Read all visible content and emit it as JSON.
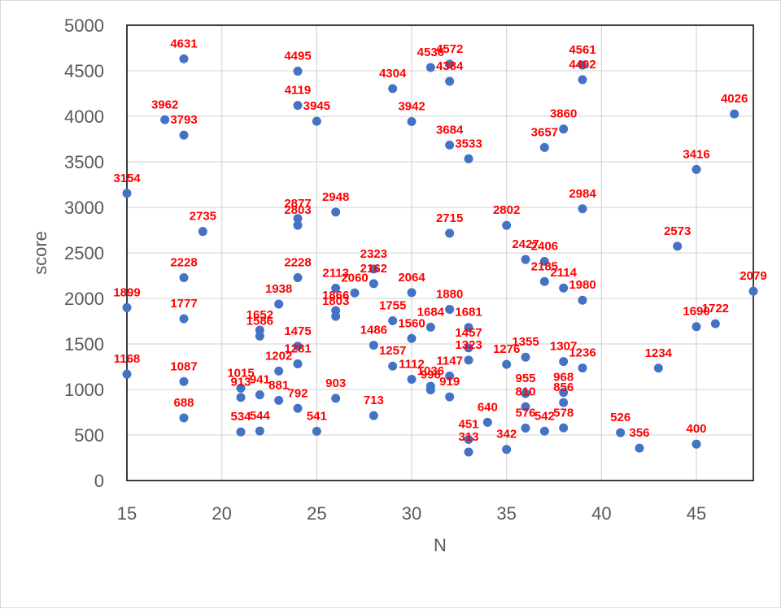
{
  "chart_data": {
    "type": "scatter",
    "title": "",
    "xlabel": "N",
    "ylabel": "score",
    "xlim": [
      15,
      48
    ],
    "ylim": [
      0,
      5000
    ],
    "xticks": [
      15,
      20,
      25,
      30,
      35,
      40,
      45
    ],
    "yticks": [
      0,
      500,
      1000,
      1500,
      2000,
      2500,
      3000,
      3500,
      4000,
      4500,
      5000
    ],
    "grid": true,
    "legend": "none",
    "marker_color": "#4472c4",
    "label_color": "#ff0000",
    "points": [
      {
        "x": 15,
        "y": 3154,
        "label": "3154"
      },
      {
        "x": 15,
        "y": 1899,
        "label": "1899"
      },
      {
        "x": 15,
        "y": 1168,
        "label": "1168"
      },
      {
        "x": 17,
        "y": 3962,
        "label": "3962"
      },
      {
        "x": 18,
        "y": 4631,
        "label": "4631"
      },
      {
        "x": 18,
        "y": 3793,
        "label": "3793"
      },
      {
        "x": 18,
        "y": 2228,
        "label": "2228"
      },
      {
        "x": 18,
        "y": 1777,
        "label": "1777"
      },
      {
        "x": 18,
        "y": 1087,
        "label": "1087"
      },
      {
        "x": 18,
        "y": 688,
        "label": "688"
      },
      {
        "x": 19,
        "y": 2735,
        "label": "2735"
      },
      {
        "x": 21,
        "y": 1015,
        "label": "1015"
      },
      {
        "x": 21,
        "y": 913,
        "label": "913"
      },
      {
        "x": 21,
        "y": 534,
        "label": "534"
      },
      {
        "x": 22,
        "y": 1652,
        "label": "1652"
      },
      {
        "x": 22,
        "y": 1586,
        "label": "1586"
      },
      {
        "x": 22,
        "y": 941,
        "label": "941"
      },
      {
        "x": 22,
        "y": 544,
        "label": "544"
      },
      {
        "x": 23,
        "y": 1938,
        "label": "1938"
      },
      {
        "x": 23,
        "y": 1202,
        "label": "1202"
      },
      {
        "x": 23,
        "y": 881,
        "label": "881"
      },
      {
        "x": 24,
        "y": 4495,
        "label": "4495"
      },
      {
        "x": 24,
        "y": 4119,
        "label": "4119"
      },
      {
        "x": 24,
        "y": 2877,
        "label": "2877"
      },
      {
        "x": 24,
        "y": 2803,
        "label": "2803"
      },
      {
        "x": 24,
        "y": 2228,
        "label": "2228"
      },
      {
        "x": 24,
        "y": 1475,
        "label": "1475"
      },
      {
        "x": 24,
        "y": 1281,
        "label": "1281"
      },
      {
        "x": 24,
        "y": 792,
        "label": "792"
      },
      {
        "x": 25,
        "y": 3945,
        "label": "3945"
      },
      {
        "x": 25,
        "y": 541,
        "label": "541"
      },
      {
        "x": 26,
        "y": 2948,
        "label": "2948"
      },
      {
        "x": 26,
        "y": 2113,
        "label": "2113"
      },
      {
        "x": 26,
        "y": 1866,
        "label": "1866"
      },
      {
        "x": 26,
        "y": 1803,
        "label": "1803"
      },
      {
        "x": 26,
        "y": 903,
        "label": "903"
      },
      {
        "x": 27,
        "y": 2060,
        "label": "2060"
      },
      {
        "x": 28,
        "y": 2323,
        "label": "2323"
      },
      {
        "x": 28,
        "y": 2162,
        "label": "2162"
      },
      {
        "x": 28,
        "y": 1486,
        "label": "1486"
      },
      {
        "x": 28,
        "y": 713,
        "label": "713"
      },
      {
        "x": 29,
        "y": 4304,
        "label": "4304"
      },
      {
        "x": 29,
        "y": 1755,
        "label": "1755"
      },
      {
        "x": 29,
        "y": 1257,
        "label": "1257"
      },
      {
        "x": 30,
        "y": 3942,
        "label": "3942"
      },
      {
        "x": 30,
        "y": 2064,
        "label": "2064"
      },
      {
        "x": 30,
        "y": 1560,
        "label": "1560"
      },
      {
        "x": 30,
        "y": 1112,
        "label": "1112"
      },
      {
        "x": 31,
        "y": 4536,
        "label": "4536"
      },
      {
        "x": 31,
        "y": 1684,
        "label": "1684"
      },
      {
        "x": 31,
        "y": 1036,
        "label": "1036"
      },
      {
        "x": 31,
        "y": 996,
        "label": "996"
      },
      {
        "x": 32,
        "y": 4572,
        "label": "4572"
      },
      {
        "x": 32,
        "y": 4384,
        "label": "4384"
      },
      {
        "x": 32,
        "y": 3684,
        "label": "3684"
      },
      {
        "x": 32,
        "y": 2715,
        "label": "2715"
      },
      {
        "x": 32,
        "y": 1880,
        "label": "1880"
      },
      {
        "x": 32,
        "y": 1147,
        "label": "1147"
      },
      {
        "x": 32,
        "y": 919,
        "label": "919"
      },
      {
        "x": 33,
        "y": 3533,
        "label": "3533"
      },
      {
        "x": 33,
        "y": 1681,
        "label": "1681"
      },
      {
        "x": 33,
        "y": 1457,
        "label": "1457"
      },
      {
        "x": 33,
        "y": 1323,
        "label": "1323"
      },
      {
        "x": 33,
        "y": 451,
        "label": "451"
      },
      {
        "x": 33,
        "y": 313,
        "label": "313"
      },
      {
        "x": 34,
        "y": 640,
        "label": "640"
      },
      {
        "x": 35,
        "y": 2802,
        "label": "2802"
      },
      {
        "x": 35,
        "y": 1276,
        "label": "1276"
      },
      {
        "x": 35,
        "y": 342,
        "label": "342"
      },
      {
        "x": 36,
        "y": 2427,
        "label": "2427"
      },
      {
        "x": 36,
        "y": 1355,
        "label": "1355"
      },
      {
        "x": 36,
        "y": 955,
        "label": "955"
      },
      {
        "x": 36,
        "y": 810,
        "label": "810"
      },
      {
        "x": 36,
        "y": 576,
        "label": "576"
      },
      {
        "x": 37,
        "y": 3657,
        "label": "3657"
      },
      {
        "x": 37,
        "y": 2406,
        "label": "2406"
      },
      {
        "x": 37,
        "y": 2185,
        "label": "2185"
      },
      {
        "x": 37,
        "y": 542,
        "label": "542"
      },
      {
        "x": 38,
        "y": 3860,
        "label": "3860"
      },
      {
        "x": 38,
        "y": 2114,
        "label": "2114"
      },
      {
        "x": 38,
        "y": 1307,
        "label": "1307"
      },
      {
        "x": 38,
        "y": 968,
        "label": "968"
      },
      {
        "x": 38,
        "y": 856,
        "label": "856"
      },
      {
        "x": 38,
        "y": 578,
        "label": "578"
      },
      {
        "x": 39,
        "y": 4561,
        "label": "4561"
      },
      {
        "x": 39,
        "y": 4402,
        "label": "4402"
      },
      {
        "x": 39,
        "y": 2984,
        "label": "2984"
      },
      {
        "x": 39,
        "y": 1980,
        "label": "1980"
      },
      {
        "x": 39,
        "y": 1236,
        "label": "1236"
      },
      {
        "x": 41,
        "y": 526,
        "label": "526"
      },
      {
        "x": 42,
        "y": 356,
        "label": "356"
      },
      {
        "x": 43,
        "y": 1234,
        "label": "1234"
      },
      {
        "x": 44,
        "y": 2573,
        "label": "2573"
      },
      {
        "x": 45,
        "y": 3416,
        "label": "3416"
      },
      {
        "x": 45,
        "y": 1690,
        "label": "1690"
      },
      {
        "x": 45,
        "y": 400,
        "label": "400"
      },
      {
        "x": 46,
        "y": 1722,
        "label": "1722"
      },
      {
        "x": 47,
        "y": 4026,
        "label": "4026"
      },
      {
        "x": 48,
        "y": 2079,
        "label": "2079"
      }
    ]
  }
}
